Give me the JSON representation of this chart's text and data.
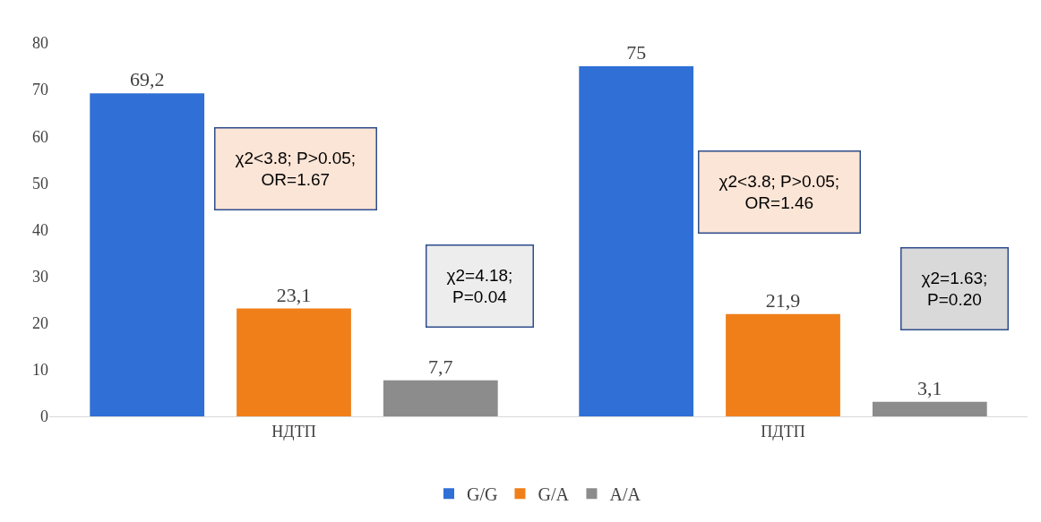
{
  "chart_data": {
    "type": "bar",
    "categories": [
      "НДТП",
      "ПДТП"
    ],
    "series": [
      {
        "name": "G/G",
        "color": "#2f6fd6",
        "values": [
          69.2,
          75
        ],
        "value_labels": [
          "69,2",
          "75"
        ]
      },
      {
        "name": "G/A",
        "color": "#f07f1a",
        "values": [
          23.1,
          21.9
        ],
        "value_labels": [
          "23,1",
          "21,9"
        ]
      },
      {
        "name": "A/A",
        "color": "#8c8c8c",
        "values": [
          7.7,
          3.1
        ],
        "value_labels": [
          "7,7",
          "3,1"
        ]
      }
    ],
    "ylim": [
      0,
      80
    ],
    "yticks": [
      0,
      10,
      20,
      30,
      40,
      50,
      60,
      70,
      80
    ],
    "legend": "bottom",
    "annotations": [
      "χ2<3.8; P>0.05;\nOR=1.67",
      "χ2=4.18;\nP=0.04",
      "χ2<3.8; P>0.05;\nOR=1.46",
      "χ2=1.63;\nP=0.20"
    ]
  }
}
